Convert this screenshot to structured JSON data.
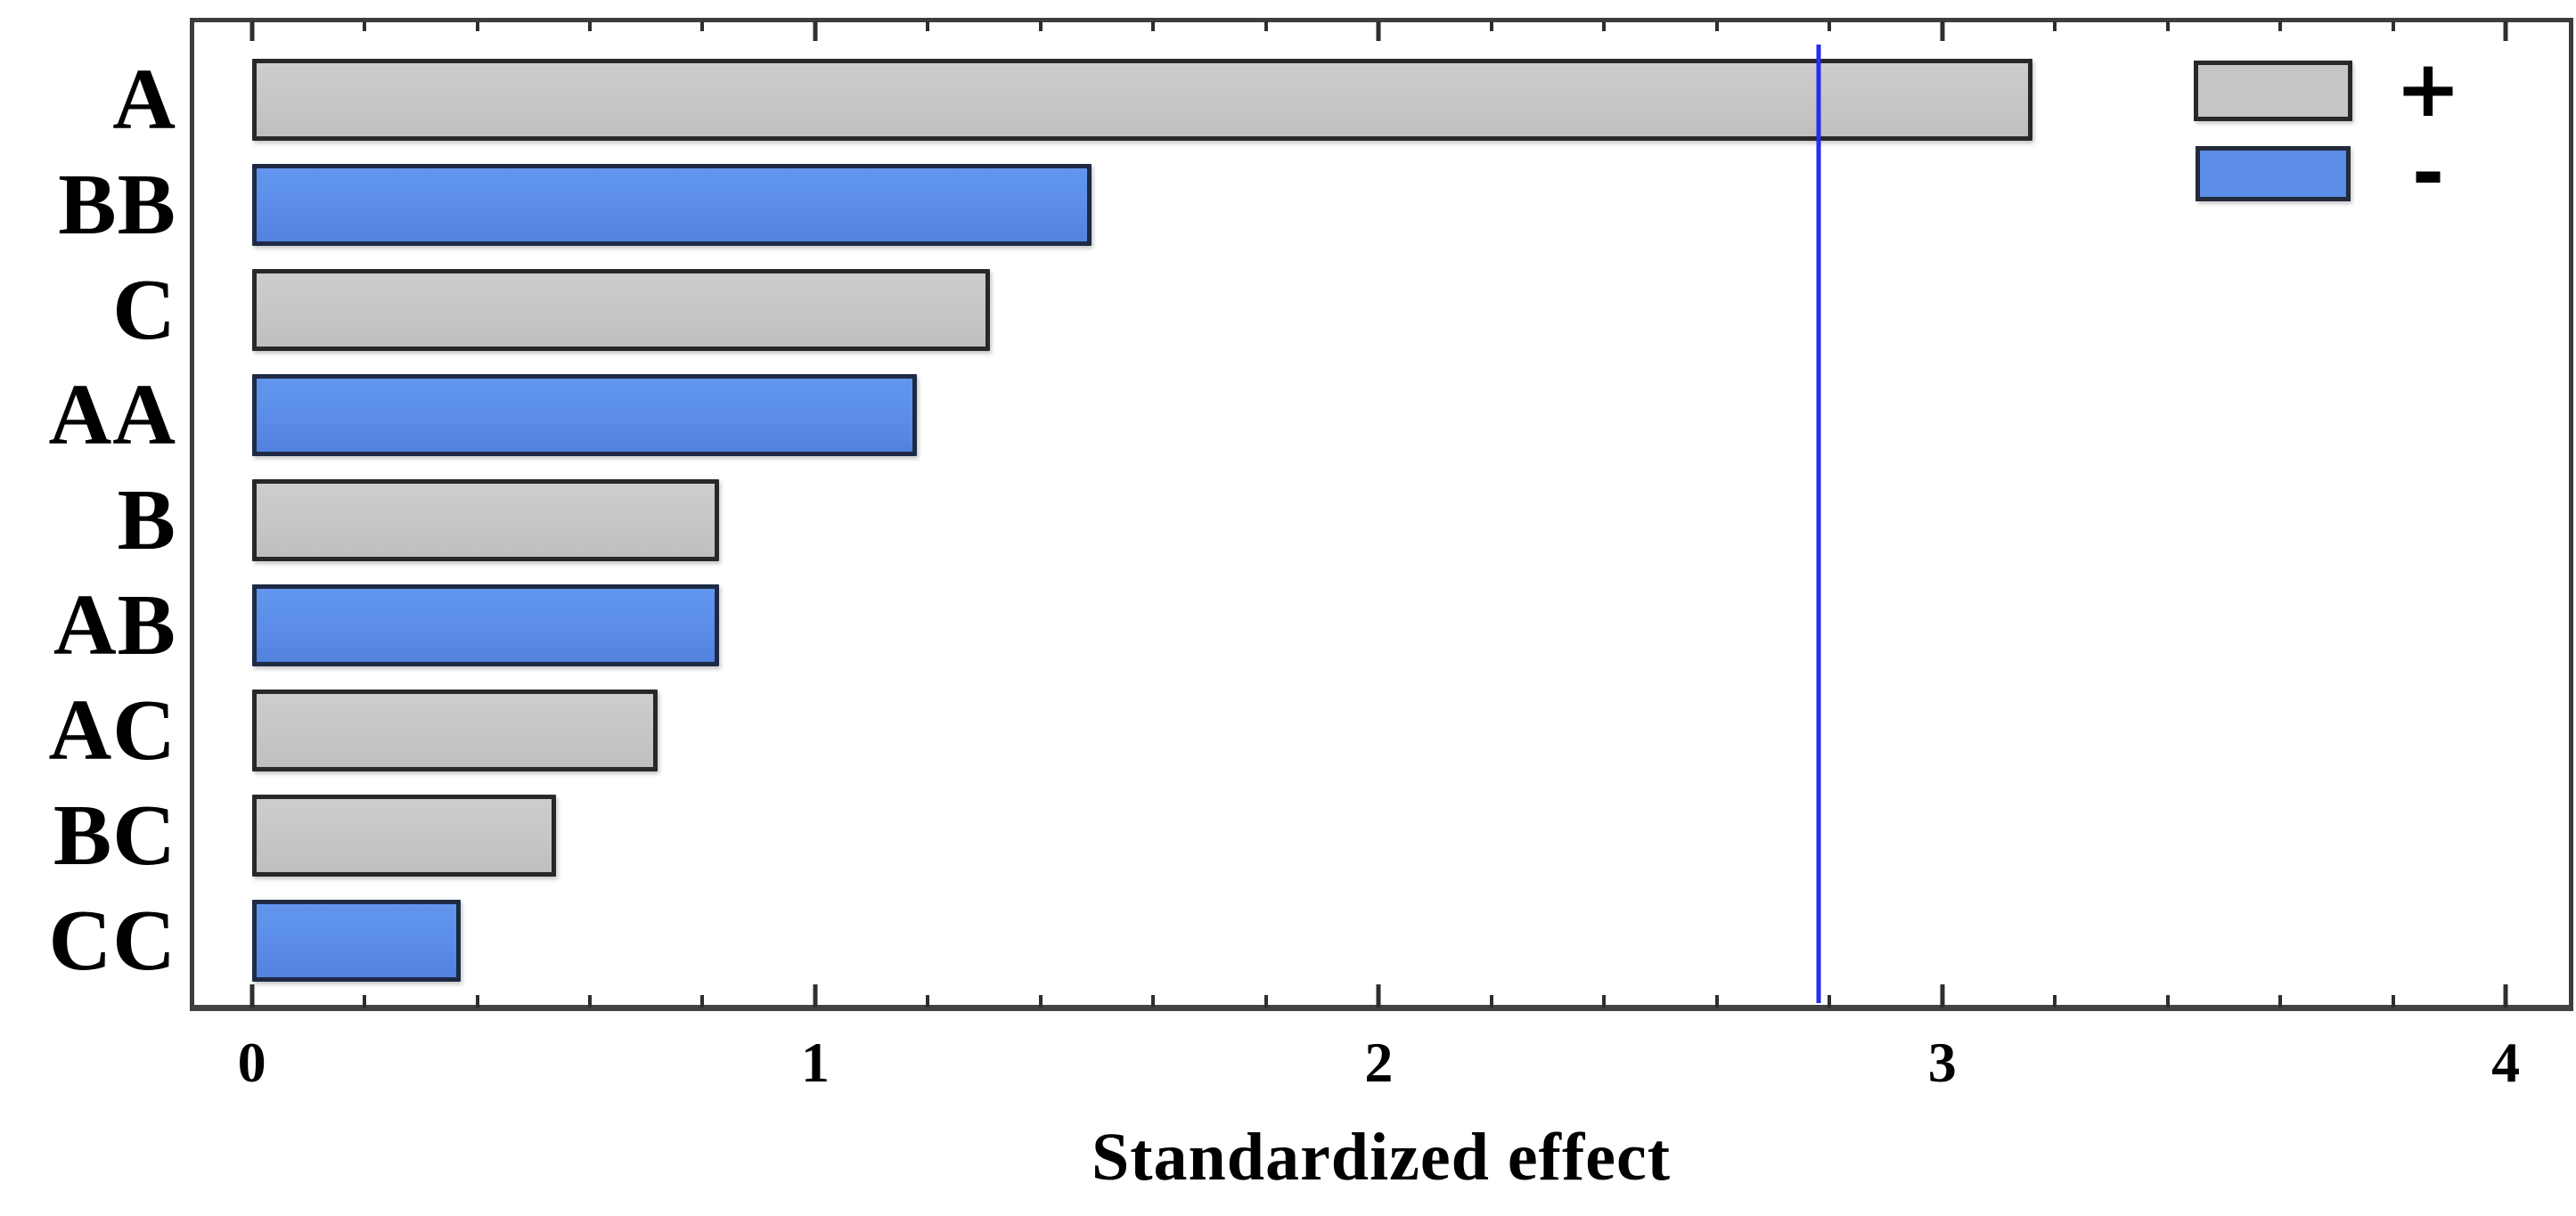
{
  "chart_data": {
    "type": "bar",
    "orientation": "horizontal",
    "title": "",
    "xlabel": "Standardized effect",
    "ylabel": "",
    "categories": [
      "A",
      "BB",
      "C",
      "AA",
      "B",
      "AB",
      "AC",
      "BC",
      "CC"
    ],
    "values": [
      3.16,
      1.49,
      1.31,
      1.18,
      0.83,
      0.83,
      0.72,
      0.54,
      0.37
    ],
    "signs": [
      "+",
      "-",
      "+",
      "-",
      "+",
      "-",
      "+",
      "+",
      "-"
    ],
    "xlim": [
      -0.11,
      4.12
    ],
    "x_major_ticks": [
      "0",
      "1",
      "2",
      "3",
      "4"
    ],
    "x_minor_tick_step": 0.2,
    "grid": false,
    "reference_line": {
      "value": 2.78,
      "color": "#2a2af0"
    },
    "colors": {
      "positive": "#c6c6c6",
      "negative": "#5b8de8"
    },
    "legend": {
      "position": "top-right",
      "entries": [
        {
          "label": "+",
          "color": "#c6c6c6"
        },
        {
          "label": "-",
          "color": "#5b8de8"
        }
      ]
    }
  }
}
